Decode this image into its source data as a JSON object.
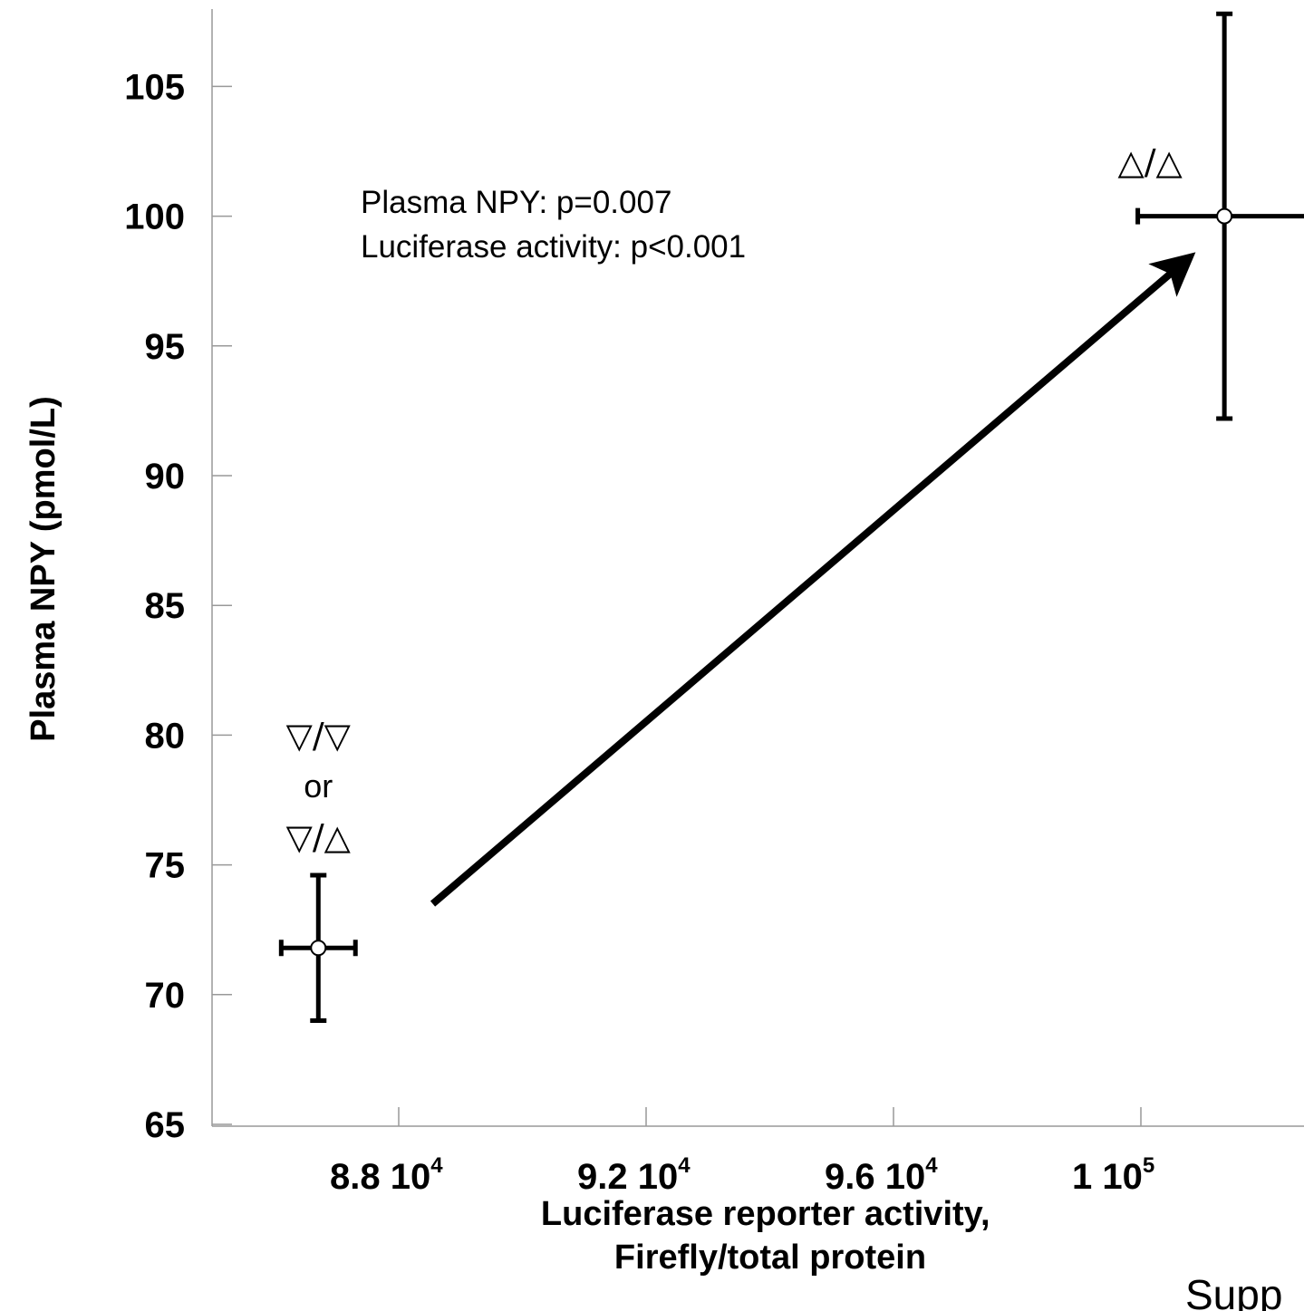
{
  "chart_data": {
    "type": "scatter",
    "xlabel": [
      "Luciferase reporter activity,",
      "Firefly/total protein"
    ],
    "ylabel": "Plasma NPY (pmol/L)",
    "xlim": [
      85000,
      102600
    ],
    "ylim": [
      65,
      107
    ],
    "x_ticks": [
      {
        "value": 88000,
        "mantissa": "8.8 10",
        "exponent": "4"
      },
      {
        "value": 92000,
        "mantissa": "9.2 10",
        "exponent": "4"
      },
      {
        "value": 96000,
        "mantissa": "9.6 10",
        "exponent": "4"
      },
      {
        "value": 100000,
        "mantissa": "1 10",
        "exponent": "5"
      }
    ],
    "y_ticks": [
      65,
      70,
      75,
      80,
      85,
      90,
      95,
      100,
      105
    ],
    "points": [
      {
        "x": 86700,
        "y": 71.8,
        "x_err": 600,
        "y_err_low": 2.8,
        "y_err_high": 2.8,
        "labels": [
          "▽/▽",
          "or",
          "▽/△"
        ]
      },
      {
        "x": 101350,
        "y": 100.0,
        "x_err": 1400,
        "y_err_low": 7.8,
        "y_err_high": 7.8,
        "labels": [
          "△/△"
        ]
      }
    ],
    "arrow": {
      "from": [
        88550,
        73.5
      ],
      "to": [
        100900,
        98.6
      ]
    },
    "annotations": [
      "Plasma NPY: p=0.007",
      "Luciferase activity: p<0.001"
    ],
    "footer_text": "Supp",
    "grid": false
  }
}
